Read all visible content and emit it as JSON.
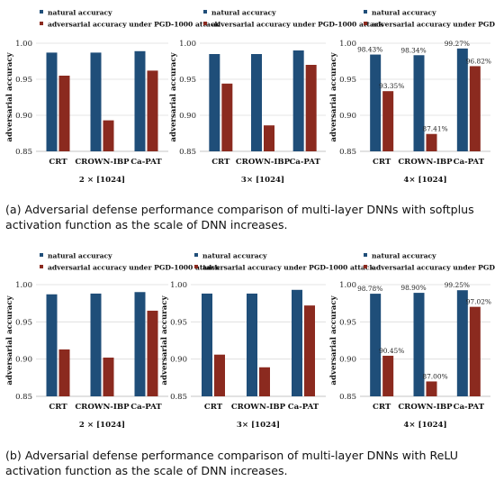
{
  "legend": {
    "natural": "natural accuracy",
    "adversarial": "adversarial accuracy under PGD-1000 attack"
  },
  "colors": {
    "natural": "#1f4e79",
    "adversarial": "#8b2a1f"
  },
  "captions": {
    "a": "(a) Adversarial defense performance comparison of multi-layer DNNs with softplus activation function as the scale of DNN increases.",
    "b": "(b) Adversarial defense performance comparison of multi-layer DNNs with ReLU activation function as the scale of DNN increases."
  },
  "chart_data": [
    {
      "type": "bar",
      "panel": "a",
      "title": "",
      "xlabel": "2 × [1024]",
      "ylabel": "adversarial accuracy",
      "categories": [
        "CRT",
        "CROWN-IBP",
        "Ca-PAT"
      ],
      "ylim": [
        0.85,
        1.0
      ],
      "yticks": [
        "0.85",
        "0.90",
        "0.95",
        "1.00"
      ],
      "series": [
        {
          "name": "natural accuracy",
          "values": [
            0.987,
            0.987,
            0.989
          ]
        },
        {
          "name": "adversarial accuracy under PGD-1000 attack",
          "values": [
            0.955,
            0.893,
            0.962
          ]
        }
      ]
    },
    {
      "type": "bar",
      "panel": "a",
      "title": "",
      "xlabel": "3× [1024]",
      "ylabel": "adversarial accuracy",
      "categories": [
        "CRT",
        "CROWN-IBP",
        "Ca-PAT"
      ],
      "ylim": [
        0.85,
        1.0
      ],
      "yticks": [
        "0.85",
        "0.90",
        "0.95",
        "1.00"
      ],
      "series": [
        {
          "name": "natural accuracy",
          "values": [
            0.985,
            0.985,
            0.99
          ]
        },
        {
          "name": "adversarial accuracy under PGD-1000 attack",
          "values": [
            0.944,
            0.886,
            0.97
          ]
        }
      ]
    },
    {
      "type": "bar",
      "panel": "a",
      "title": "",
      "xlabel": "4× [1024]",
      "ylabel": "adversarial accuracy",
      "categories": [
        "CRT",
        "CROWN-IBP",
        "Ca-PAT"
      ],
      "ylim": [
        0.85,
        1.0
      ],
      "yticks": [
        "0.85",
        "0.90",
        "0.95",
        "1.00"
      ],
      "series": [
        {
          "name": "natural accuracy",
          "values": [
            0.9843,
            0.9834,
            0.9927
          ],
          "labels": [
            "98.43%",
            "98.34%",
            "99.27%"
          ]
        },
        {
          "name": "adversarial accuracy under PGD-1000 attack",
          "values": [
            0.9335,
            0.8741,
            0.9682
          ],
          "labels": [
            "93.35%",
            "87.41%",
            "96.82%"
          ]
        }
      ]
    },
    {
      "type": "bar",
      "panel": "b",
      "title": "",
      "xlabel": "2 × [1024]",
      "ylabel": "adversarial accuracy",
      "categories": [
        "CRT",
        "CROWN-IBP",
        "Ca-PAT"
      ],
      "ylim": [
        0.85,
        1.0
      ],
      "yticks": [
        "0.85",
        "0.90",
        "0.95",
        "1.00"
      ],
      "series": [
        {
          "name": "natural accuracy",
          "values": [
            0.987,
            0.988,
            0.99
          ]
        },
        {
          "name": "adversarial accuracy under PGD-1000 attack",
          "values": [
            0.913,
            0.902,
            0.965
          ]
        }
      ]
    },
    {
      "type": "bar",
      "panel": "b",
      "title": "",
      "xlabel": "3× [1024]",
      "ylabel": "adversarial accuracy",
      "categories": [
        "CRT",
        "CROWN-IBP",
        "Ca-PAT"
      ],
      "ylim": [
        0.85,
        1.0
      ],
      "yticks": [
        "0.85",
        "0.90",
        "0.95",
        "1.00"
      ],
      "series": [
        {
          "name": "natural accuracy",
          "values": [
            0.988,
            0.988,
            0.993
          ]
        },
        {
          "name": "adversarial accuracy under PGD-1000 attack",
          "values": [
            0.906,
            0.889,
            0.972
          ]
        }
      ]
    },
    {
      "type": "bar",
      "panel": "b",
      "title": "",
      "xlabel": "4× [1024]",
      "ylabel": "adversarial accuracy",
      "categories": [
        "CRT",
        "CROWN-IBP",
        "Ca-PAT"
      ],
      "ylim": [
        0.85,
        1.0
      ],
      "yticks": [
        "0.85",
        "0.90",
        "0.95",
        "1.00"
      ],
      "series": [
        {
          "name": "natural accuracy",
          "values": [
            0.9878,
            0.989,
            0.9925
          ],
          "labels": [
            "98.78%",
            "98.90%",
            "99.25%"
          ]
        },
        {
          "name": "adversarial accuracy under PGD-1000 attack",
          "values": [
            0.9045,
            0.87,
            0.9702
          ],
          "labels": [
            "90.45%",
            "87.00%",
            "97.02%"
          ]
        }
      ]
    }
  ]
}
